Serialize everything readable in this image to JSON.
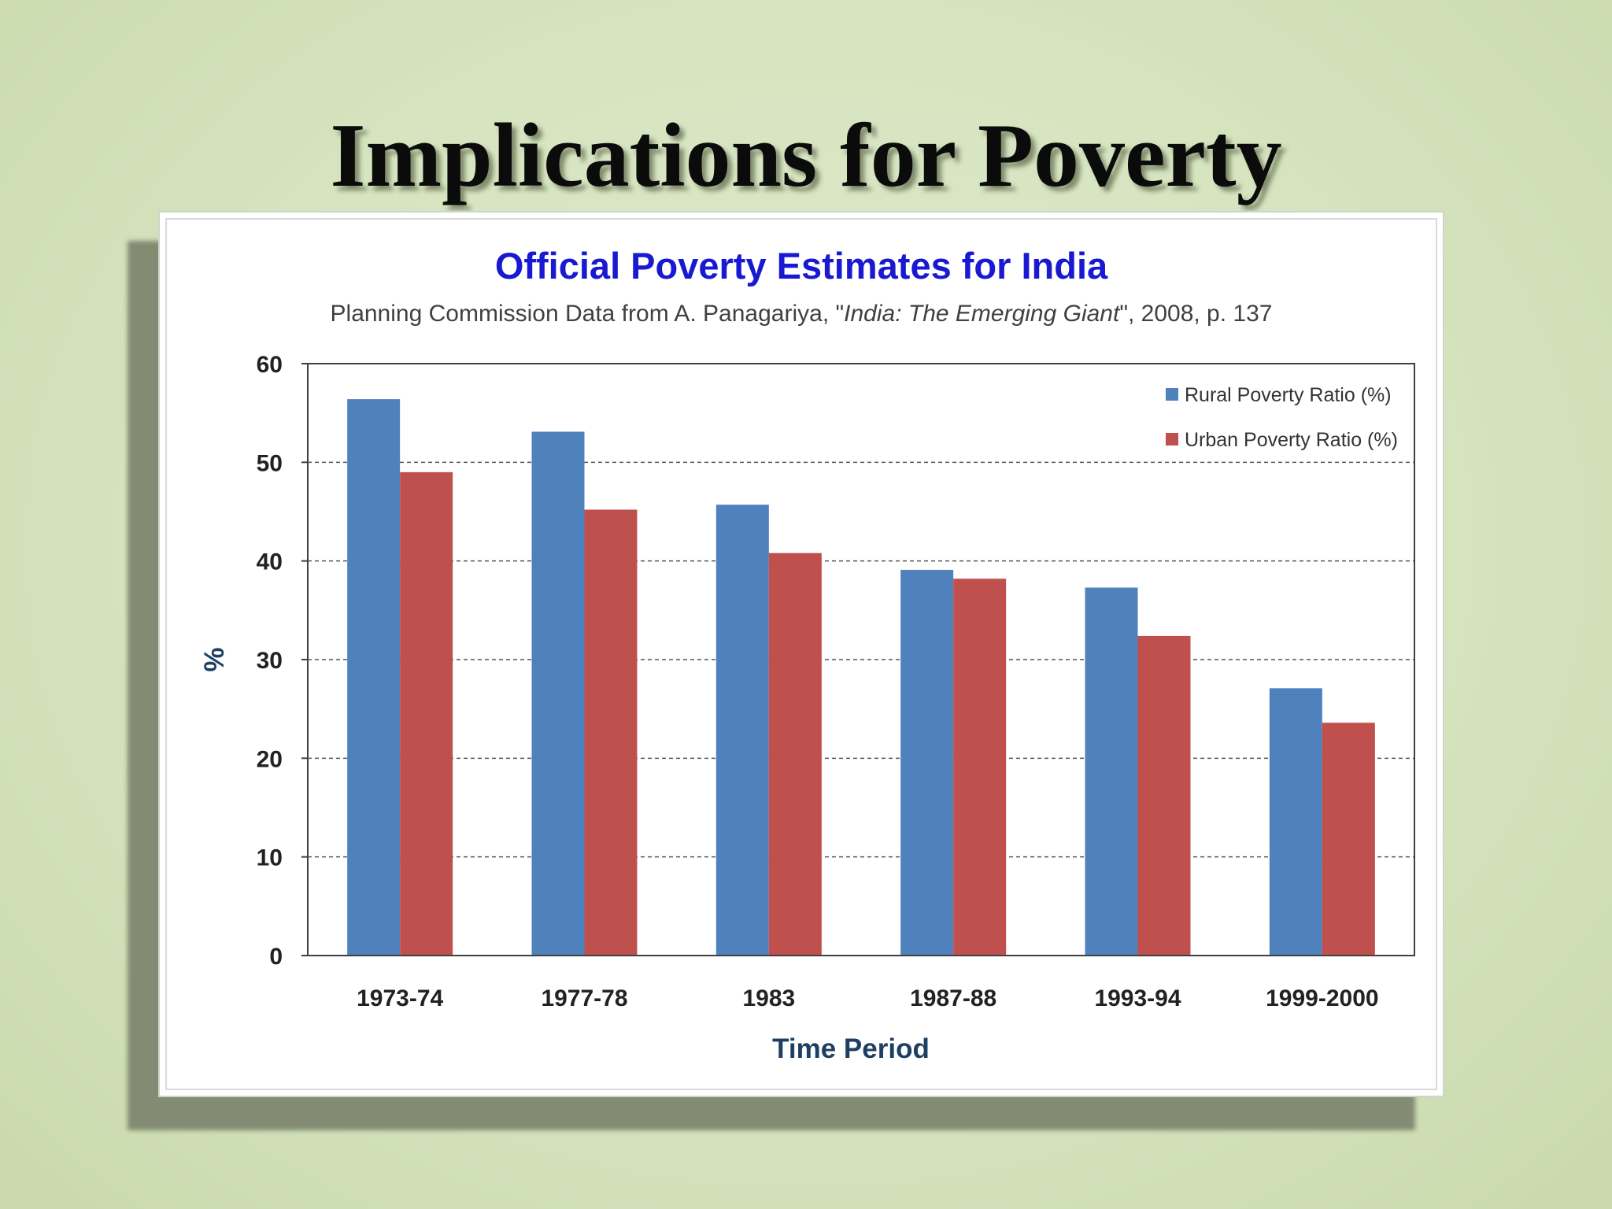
{
  "slide": {
    "title": "Implications for Poverty"
  },
  "colors": {
    "rural": "#4f81bd",
    "urban": "#c0504d",
    "chart_title": "#1919d2",
    "axis_title": "#1f3f62"
  },
  "chart_data": {
    "type": "bar",
    "title": "Official Poverty Estimates for India",
    "subtitle": {
      "prefix": "Planning Commission Data from A. Panagariya, \"",
      "italic": "India: The Emerging Giant",
      "suffix": "\", 2008, p. 137"
    },
    "xlabel": "Time Period",
    "ylabel": "%",
    "ylim": [
      0,
      60
    ],
    "yticks": [
      0,
      10,
      20,
      30,
      40,
      50,
      60
    ],
    "grid": true,
    "legend_position": "top-right",
    "categories": [
      "1973-74",
      "1977-78",
      "1983",
      "1987-88",
      "1993-94",
      "1999-2000"
    ],
    "series": [
      {
        "name": "Rural Poverty Ratio (%)",
        "values": [
          56.4,
          53.1,
          45.7,
          39.1,
          37.3,
          27.1
        ]
      },
      {
        "name": "Urban Poverty Ratio (%)",
        "values": [
          49.0,
          45.2,
          40.8,
          38.2,
          32.4,
          23.6
        ]
      }
    ]
  }
}
